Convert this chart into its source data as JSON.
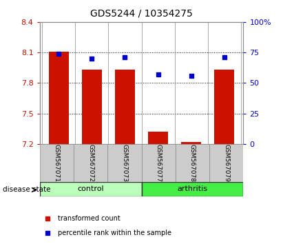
{
  "title": "GDS5244 / 10354275",
  "samples": [
    "GSM567071",
    "GSM567072",
    "GSM567073",
    "GSM567077",
    "GSM567078",
    "GSM567079"
  ],
  "bar_values": [
    8.11,
    7.93,
    7.93,
    7.32,
    7.22,
    7.93
  ],
  "dot_values": [
    74,
    70,
    71,
    57,
    56,
    71
  ],
  "ymin": 7.2,
  "ymax": 8.4,
  "y2min": 0,
  "y2max": 100,
  "yticks": [
    7.2,
    7.5,
    7.8,
    8.1,
    8.4
  ],
  "y2ticks": [
    0,
    25,
    50,
    75,
    100
  ],
  "bar_color": "#cc1100",
  "dot_color": "#0000cc",
  "bar_bottom": 7.2,
  "groups": [
    {
      "label": "control",
      "indices": [
        0,
        1,
        2
      ],
      "color": "#bbffbb"
    },
    {
      "label": "arthritis",
      "indices": [
        3,
        4,
        5
      ],
      "color": "#44ee44"
    }
  ],
  "group_label": "disease state",
  "tick_label_color_left": "#cc1100",
  "tick_label_color_right": "#0000cc",
  "legend_items": [
    {
      "label": "transformed count",
      "color": "#cc1100"
    },
    {
      "label": "percentile rank within the sample",
      "color": "#0000cc"
    }
  ],
  "sample_box_color": "#cccccc",
  "bar_width": 0.6
}
